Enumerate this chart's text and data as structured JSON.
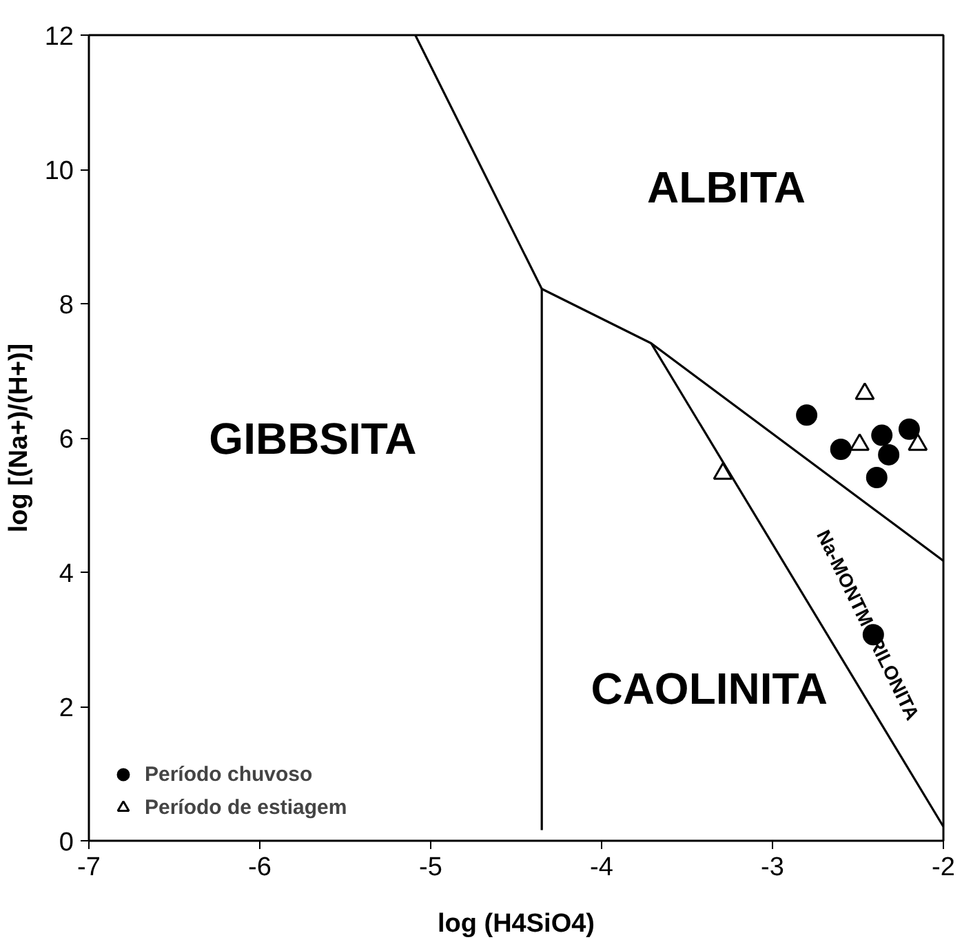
{
  "chart_data": {
    "type": "scatter",
    "xlabel": "log (H4SiO4)",
    "ylabel": "log [(Na+)/(H+)]",
    "xlim": [
      -7,
      -2
    ],
    "ylim": [
      0,
      12
    ],
    "xticks": [
      -7,
      -6,
      -5,
      -4,
      -3,
      -2
    ],
    "yticks": [
      0,
      2,
      4,
      6,
      8,
      10,
      12
    ],
    "grid": false,
    "legend": "bottom left",
    "series": [
      {
        "type": "line",
        "color": "#000000",
        "marker": "none",
        "x": [
          -5.09,
          -4.35,
          -3.71,
          -2
        ],
        "values": [
          12,
          8.22,
          7.41,
          4.17
        ]
      },
      {
        "type": "line",
        "color": "#000000",
        "marker": "none",
        "x": [
          -4.35,
          -4.35
        ],
        "values": [
          8.22,
          0.16
        ]
      },
      {
        "type": "line",
        "color": "#000000",
        "marker": "none",
        "x": [
          -3.71,
          -2
        ],
        "values": [
          7.41,
          0.21
        ]
      },
      {
        "name": "Período chuvoso",
        "color": "#000000",
        "marker": "circle",
        "x": [
          -2.8,
          -2.6,
          -2.36,
          -2.32,
          -2.2,
          -2.39,
          -2.41
        ],
        "values": [
          6.34,
          5.83,
          6.04,
          5.75,
          6.13,
          5.41,
          3.07
        ]
      },
      {
        "name": "Período de estiagem",
        "color": "#000000",
        "marker": "triangle",
        "x": [
          -2.46,
          -2.49,
          -2.15,
          -3.29
        ],
        "values": [
          6.66,
          5.9,
          5.9,
          5.47
        ]
      }
    ],
    "annotations": [
      "ALBITA",
      "GIBBSITA",
      "CAOLINITA",
      "Na-MONTMORILONITA"
    ]
  }
}
